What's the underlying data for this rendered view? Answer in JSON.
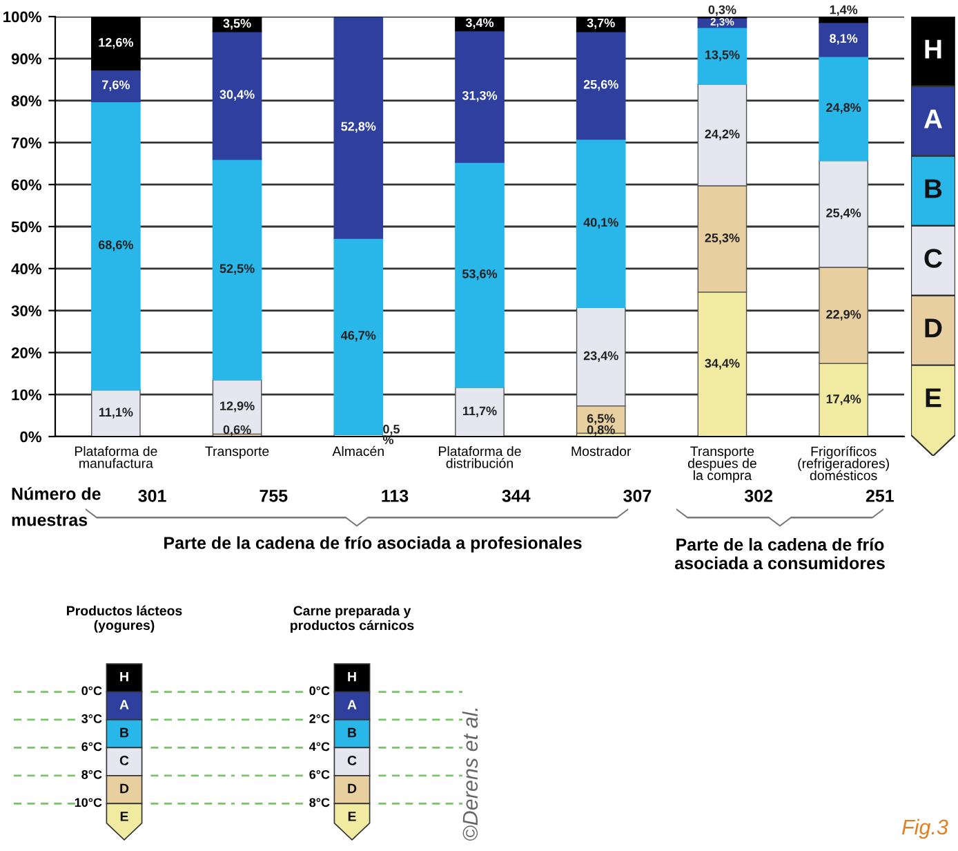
{
  "chart_data": [
    {
      "type": "bar",
      "stacked": true,
      "categories": [
        "Plataforma de\nmanufactura",
        "Transporte",
        "Almacén",
        "Plataforma de\ndistribución",
        "Mostrador",
        "Transporte\ndespues de\nla compra",
        "Frigoríficos\n(refrigeradores)\ndomésticos"
      ],
      "series": [
        {
          "name": "E",
          "color": "#f0eba0",
          "values": [
            0,
            0,
            0,
            0,
            0.8,
            34.4,
            17.4
          ],
          "value_labels": [
            null,
            null,
            null,
            null,
            "0,8%",
            "34,4%",
            "17,4%"
          ]
        },
        {
          "name": "D",
          "color": "#e8cfa0",
          "values": [
            0,
            0.6,
            0,
            0,
            6.5,
            25.3,
            22.9
          ],
          "value_labels": [
            null,
            "0,6%",
            null,
            null,
            "6,5%",
            "25,3%",
            "22,9%"
          ]
        },
        {
          "name": "C",
          "color": "#e6e6f0",
          "values": [
            11.1,
            12.9,
            0.5,
            11.7,
            23.4,
            24.2,
            25.4
          ],
          "value_labels": [
            "11,1%",
            "12,9%",
            "0,5\n%",
            "11,7%",
            "23,4%",
            "24,2%",
            "25,4%"
          ]
        },
        {
          "name": "B",
          "color": "#29b6e8",
          "values": [
            68.6,
            52.5,
            46.7,
            53.6,
            40.1,
            13.5,
            24.8
          ],
          "value_labels": [
            "68,6%",
            "52,5%",
            "46,7%",
            "53,6%",
            "40,1%",
            "13,5%",
            "24,8%"
          ]
        },
        {
          "name": "A",
          "color": "#2e3f9e",
          "values": [
            7.6,
            30.4,
            52.8,
            31.3,
            25.6,
            2.3,
            8.1
          ],
          "value_labels": [
            "7,6%",
            "30,4%",
            "52,8%",
            "31,3%",
            "25,6%",
            "2,3%",
            "8,1%"
          ]
        },
        {
          "name": "H",
          "color": "#000000",
          "values": [
            12.6,
            3.5,
            0,
            3.4,
            3.7,
            0.3,
            1.4
          ],
          "value_labels": [
            "12,6%",
            "3,5%",
            null,
            "3,4%",
            "3,7%",
            "0,3%",
            "1,4%"
          ]
        }
      ],
      "ylim": [
        0,
        100
      ],
      "yticks": [
        {
          "value": 0,
          "label": "0%"
        },
        {
          "value": 10,
          "label": "10%"
        },
        {
          "value": 20,
          "label": "20%"
        },
        {
          "value": 30,
          "label": "30%"
        },
        {
          "value": 40,
          "label": "40%"
        },
        {
          "value": 50,
          "label": "50%"
        },
        {
          "value": 60,
          "label": "60%"
        },
        {
          "value": 70,
          "label": "70%"
        },
        {
          "value": 80,
          "label": "80%"
        },
        {
          "value": 90,
          "label": "90%"
        },
        {
          "value": 100,
          "label": "100%"
        }
      ],
      "grid": "y",
      "legend": "right",
      "annotations": [
        "Número de\nmuestras",
        "Parte de la cadena de frío asociada a profesionales",
        "Parte de la cadena de frío\nasociada a consumidores",
        "©Derens et al.",
        "Fig.3",
        "301",
        "755",
        "113",
        "344",
        "307",
        "302",
        "251"
      ]
    },
    {
      "type": "other",
      "title": "Productos lácteos\n(yogures)",
      "categories": [
        "H",
        "A",
        "B",
        "C",
        "D",
        "E"
      ],
      "colors": [
        "#000000",
        "#2e3f9e",
        "#29b6e8",
        "#e6e6f0",
        "#e8cfa0",
        "#f0eba0"
      ],
      "annotations": [
        "0°C",
        "3°C",
        "6°C",
        "8°C",
        "10°C"
      ]
    },
    {
      "type": "other",
      "title": "Carne preparada y\nproductos cárnicos",
      "categories": [
        "H",
        "A",
        "B",
        "C",
        "D",
        "E"
      ],
      "colors": [
        "#000000",
        "#2e3f9e",
        "#29b6e8",
        "#e6e6f0",
        "#e8cfa0",
        "#f0eba0"
      ],
      "annotations": [
        "0°C",
        "2°C",
        "4°C",
        "6°C",
        "8°C"
      ]
    }
  ]
}
